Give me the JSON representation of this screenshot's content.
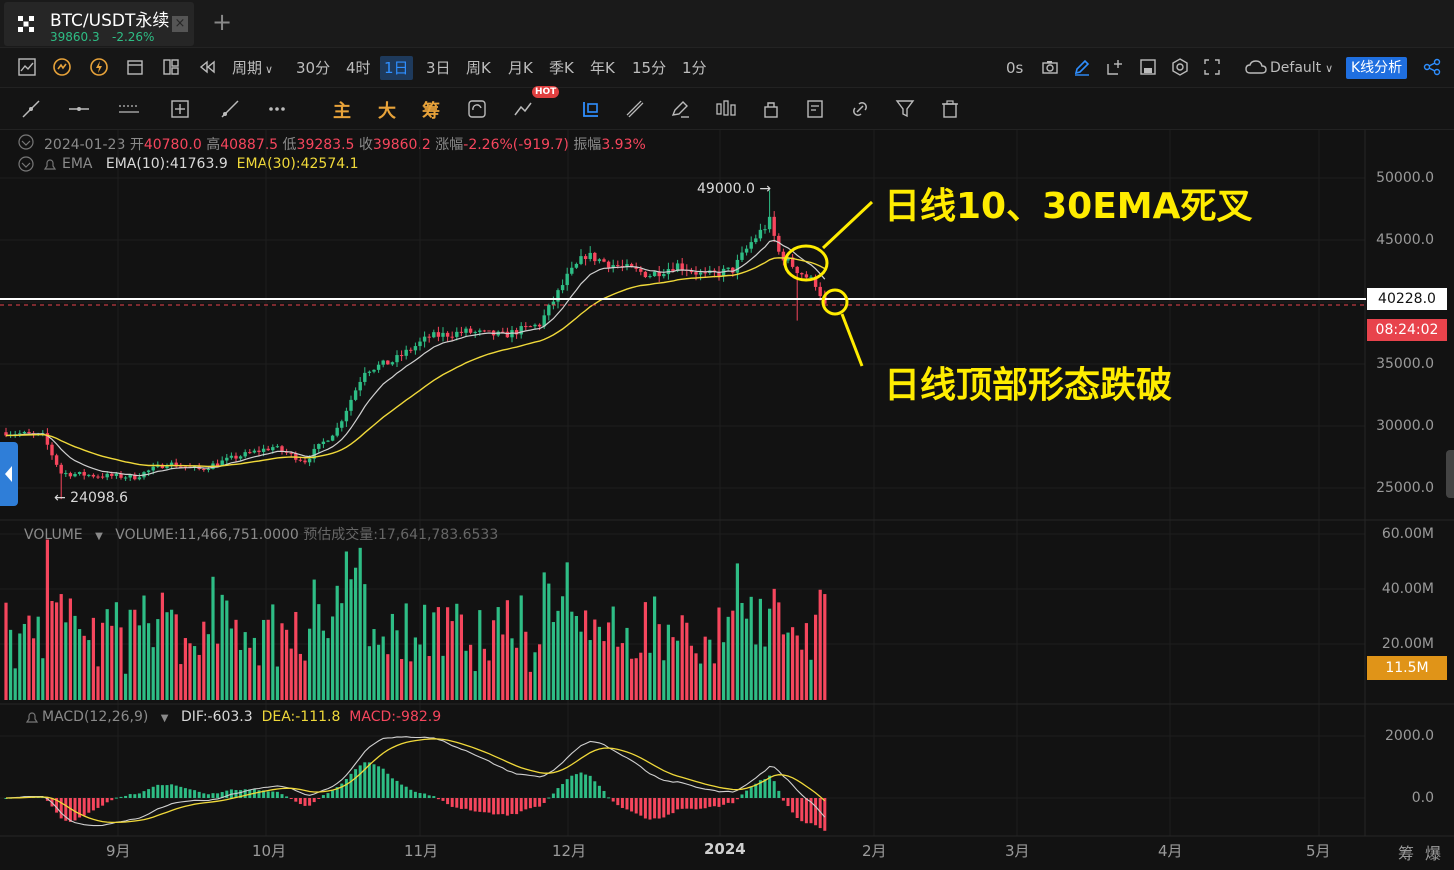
{
  "tab": {
    "title": "BTC/USDT永续",
    "price": "39860.3",
    "change": "-2.26%",
    "close_glyph": "×",
    "new_tab_glyph": "+"
  },
  "toolbar": {
    "period_label": "周期",
    "intervals": [
      "30分",
      "4时",
      "1日",
      "3日",
      "周K",
      "月K",
      "季K",
      "年K",
      "15分",
      "1分"
    ],
    "active_interval": "1日",
    "countdown": "0s",
    "theme": "Default",
    "analysis_button": "K线分析"
  },
  "drawbar": {
    "text_tools": [
      "主",
      "大",
      "筹"
    ],
    "hot_badge": "HOT"
  },
  "info": {
    "date": "2024-01-23",
    "open_label": "开",
    "open": "40780.0",
    "high_label": "高",
    "high": "40887.5",
    "low_label": "低",
    "low": "39283.5",
    "close_label": "收",
    "close": "39860.2",
    "change_label": "涨幅",
    "change": "-2.26%(-919.7)",
    "amplitude_label": "振幅",
    "amplitude": "3.93%",
    "ema_name": "EMA",
    "ema10": "EMA(10):41763.9",
    "ema30": "EMA(30):42574.1",
    "volume_name": "VOLUME",
    "volume_value": "VOLUME:11,466,751.0000",
    "volume_est": "预估成交量:17,641,783.6533",
    "macd_name": "MACD(12,26,9)",
    "dif": "DIF:-603.3",
    "dea": "DEA:-111.8",
    "macd": "MACD:-982.9"
  },
  "price_axis": [
    "50000.0",
    "45000.0",
    "40000.0",
    "35000.0",
    "30000.0",
    "25000.0"
  ],
  "volume_axis": [
    "60.00M",
    "40.00M",
    "20.00M"
  ],
  "macd_axis": [
    "2000.0",
    "0.0"
  ],
  "time_axis": [
    "9月",
    "10月",
    "11月",
    "12月",
    "2024",
    "2月",
    "3月",
    "4月",
    "5月"
  ],
  "bottom_buttons": [
    "筹",
    "爆"
  ],
  "markers": {
    "high_label": "49000.0 →",
    "low_label": "← 24098.6",
    "current_price": "40228.0",
    "countdown_box": "08:24:02",
    "volume_box": "11.5M"
  },
  "annotations": {
    "cross": "日线10、30EMA死叉",
    "breakdown": "日线顶部形态跌破"
  },
  "colors": {
    "up": "#2ebd85",
    "down": "#f6465d",
    "ema10": "#d0d0d0",
    "ema30": "#f0d93a",
    "annotation": "#ffec00",
    "accent": "#2f7ed8"
  },
  "chart_data": {
    "type": "candlestick",
    "y_range": [
      22000,
      52000
    ],
    "keypoints": [
      {
        "d": 0,
        "p": 29500
      },
      {
        "d": 8,
        "p": 29200
      },
      {
        "d": 12,
        "p": 26200
      },
      {
        "d": 20,
        "p": 26000
      },
      {
        "d": 28,
        "p": 25900
      },
      {
        "d": 35,
        "p": 27000
      },
      {
        "d": 42,
        "p": 26500
      },
      {
        "d": 50,
        "p": 27500
      },
      {
        "d": 58,
        "p": 28300
      },
      {
        "d": 65,
        "p": 27200
      },
      {
        "d": 72,
        "p": 29800
      },
      {
        "d": 78,
        "p": 34500
      },
      {
        "d": 84,
        "p": 35200
      },
      {
        "d": 92,
        "p": 37200
      },
      {
        "d": 100,
        "p": 37600
      },
      {
        "d": 108,
        "p": 37300
      },
      {
        "d": 116,
        "p": 38200
      },
      {
        "d": 122,
        "p": 42000
      },
      {
        "d": 126,
        "p": 43800
      },
      {
        "d": 132,
        "p": 43000
      },
      {
        "d": 140,
        "p": 42200
      },
      {
        "d": 146,
        "p": 43000
      },
      {
        "d": 152,
        "p": 42100
      },
      {
        "d": 158,
        "p": 42600
      },
      {
        "d": 162,
        "p": 44800
      },
      {
        "d": 166,
        "p": 46500
      },
      {
        "d": 168,
        "p": 44000
      },
      {
        "d": 172,
        "p": 42600
      },
      {
        "d": 176,
        "p": 41500
      },
      {
        "d": 178,
        "p": 39900
      }
    ]
  }
}
